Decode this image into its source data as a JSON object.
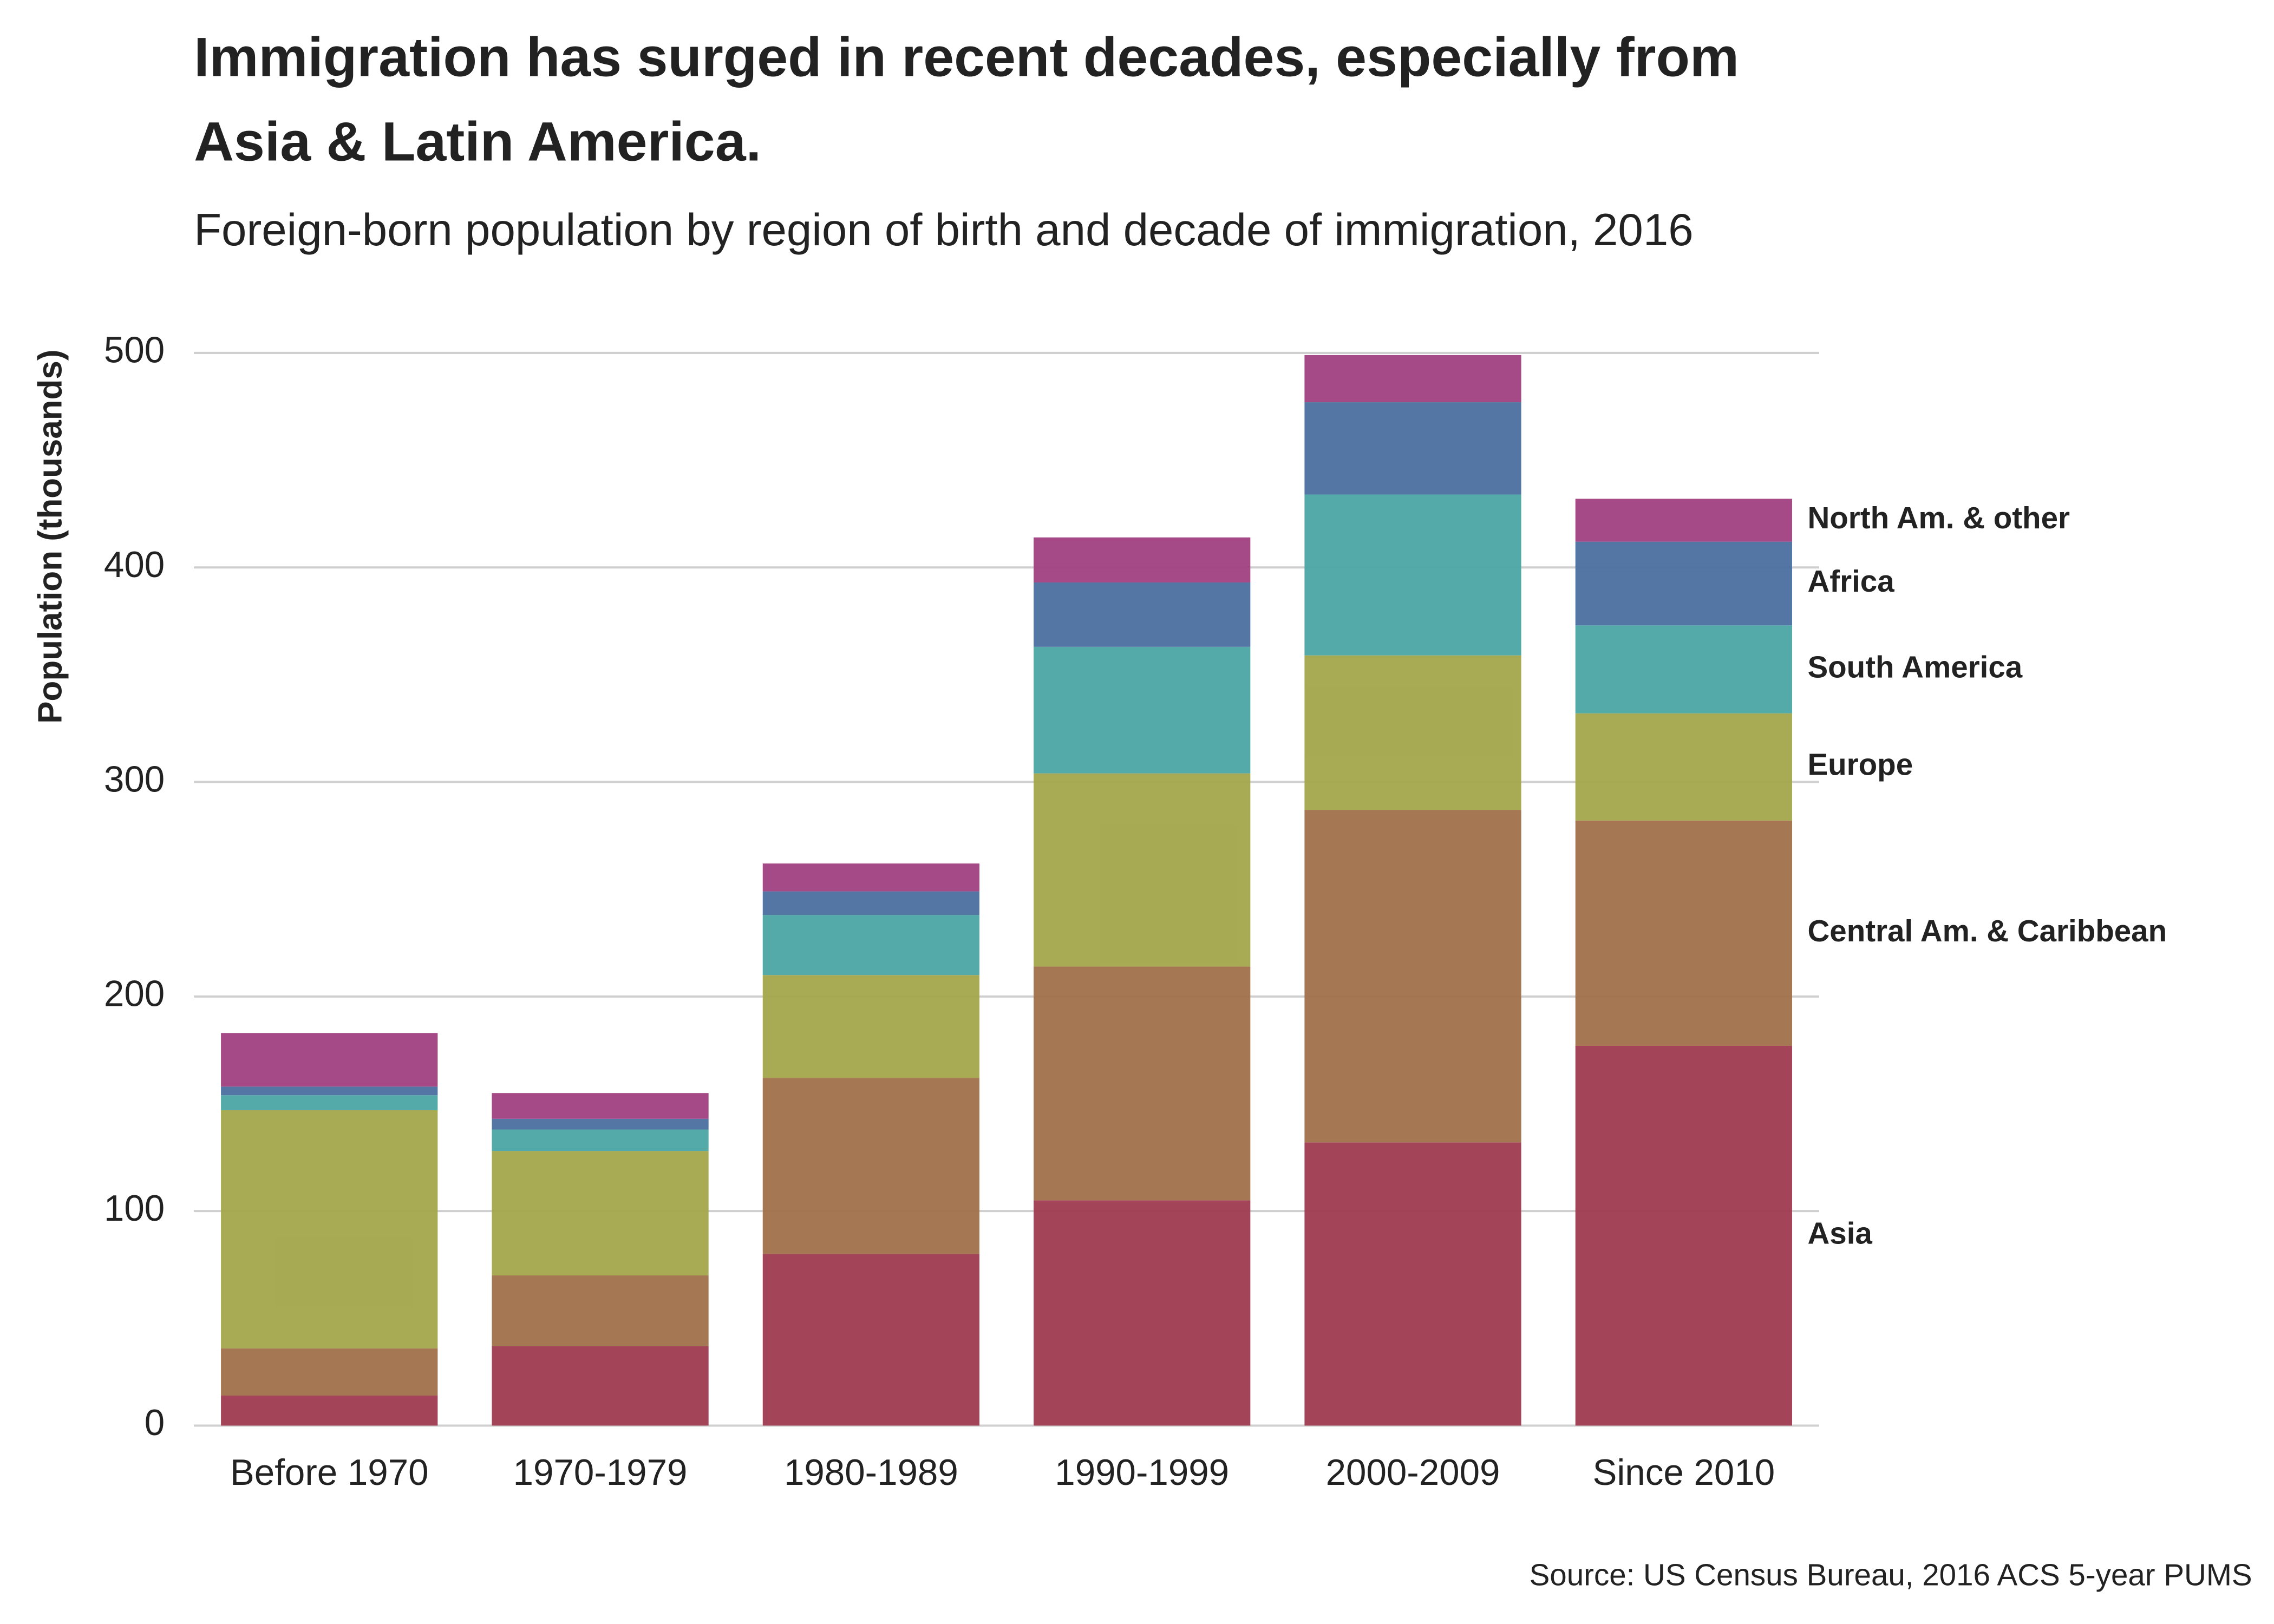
{
  "chart_data": {
    "type": "stacked-bar",
    "title": [
      "Immigration has surged in recent decades, especially from",
      "Asia & Latin America."
    ],
    "subtitle": "Foreign-born population by region of birth and decade of immigration, 2016",
    "y_label": "Population (thousands)",
    "source": "Source: US Census Bureau, 2016 ACS 5-year PUMS",
    "categories": [
      "Before 1970",
      "1970-1979",
      "1980-1989",
      "1990-1999",
      "2000-2009",
      "Since 2010"
    ],
    "series": [
      {
        "name": "Asia",
        "color": "#9e3a50",
        "label_color": "#6b1030",
        "values": [
          14,
          37,
          80,
          105,
          132,
          177
        ]
      },
      {
        "name": "Central Am. & Caribbean",
        "color": "#a0704a",
        "label_color": "#6b3510",
        "values": [
          22,
          33,
          82,
          109,
          155,
          105
        ]
      },
      {
        "name": "Europe",
        "color": "#a3a64a",
        "label_color": "#6b6a10",
        "values": [
          111,
          58,
          48,
          90,
          72,
          50
        ]
      },
      {
        "name": "South America",
        "color": "#4ba5a3",
        "label_color": "#1a6b6a",
        "values": [
          7,
          10,
          28,
          59,
          75,
          41
        ]
      },
      {
        "name": "Africa",
        "color": "#4a6fa0",
        "label_color": "#1a3b6b",
        "values": [
          4,
          5,
          11,
          30,
          43,
          39
        ]
      },
      {
        "name": "North Am. & other",
        "color": "#a04080",
        "label_color": "#6b104b",
        "values": [
          25,
          12,
          13,
          21,
          22,
          20
        ]
      }
    ],
    "ylim": [
      0,
      500
    ],
    "yticks": [
      0,
      100,
      200,
      300,
      400,
      500
    ],
    "grid": true
  }
}
